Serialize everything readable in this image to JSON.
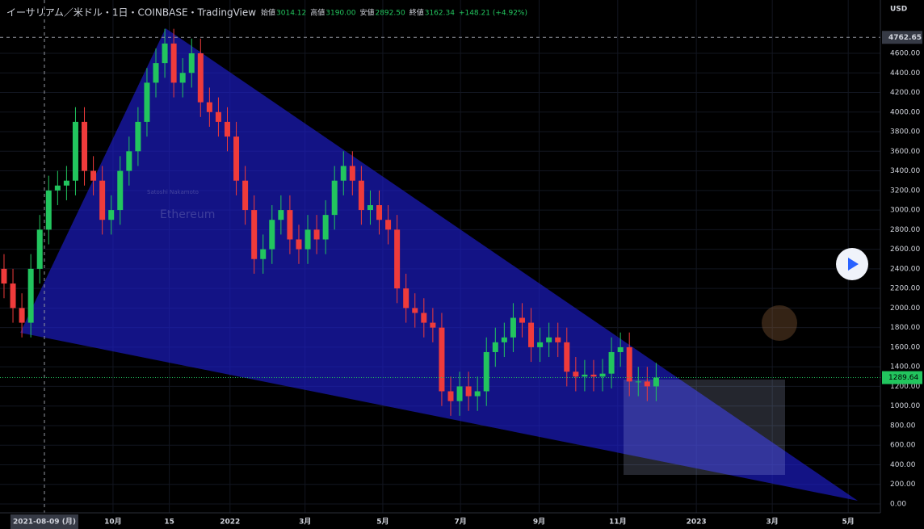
{
  "chart_data": {
    "type": "candlestick",
    "title": "イーサリアム／米ドル・1日・COINBASE・TradingView",
    "ohlc_legend": [
      {
        "label": "始値",
        "value": "3014.12"
      },
      {
        "label": "高値",
        "value": "3190.00"
      },
      {
        "label": "安値",
        "value": "2892.50"
      },
      {
        "label": "終値",
        "value": "3162.34"
      }
    ],
    "change": "+148.21 (+4.92%)",
    "currency": "USD",
    "watermark": "Ethereum",
    "watermark_sub": "Satoshi Nakamoto",
    "up_color": "#22c55e",
    "down_color": "#ef3b3b",
    "open": [
      2400,
      2250,
      2000,
      1850,
      2400,
      2800,
      3200,
      3250,
      3300,
      3900,
      3400,
      3300,
      2900,
      3000,
      3400,
      3600,
      3900,
      4300,
      4500,
      4700,
      4300,
      4400,
      4600,
      4100,
      4000,
      3900,
      3750,
      3300,
      3000,
      2500,
      2600,
      2900,
      3000,
      2700,
      2600,
      2800,
      2700,
      2950,
      3300,
      3450,
      3300,
      3000,
      3050,
      2900,
      2800,
      2200,
      2000,
      1950,
      1850,
      1800,
      1150,
      1050,
      1200,
      1100,
      1150,
      1550,
      1650,
      1700,
      1900,
      1850,
      1600,
      1650,
      1700,
      1650,
      1350,
      1300,
      1320,
      1300,
      1330,
      1550,
      1600,
      1250,
      1250,
      1200
    ],
    "high": [
      2550,
      2400,
      2150,
      2550,
      2950,
      3350,
      3400,
      3450,
      4050,
      4050,
      3550,
      3450,
      3150,
      3550,
      3750,
      4050,
      4450,
      4650,
      4850,
      4850,
      4550,
      4750,
      4750,
      4250,
      4150,
      4050,
      3900,
      3450,
      3150,
      2750,
      3050,
      3150,
      3150,
      2850,
      2950,
      2950,
      3100,
      3450,
      3600,
      3600,
      3450,
      3200,
      3200,
      3050,
      2950,
      2350,
      2150,
      2100,
      2000,
      1950,
      1300,
      1350,
      1350,
      1300,
      1700,
      1800,
      1850,
      2050,
      2050,
      2000,
      1800,
      1850,
      1850,
      1800,
      1500,
      1470,
      1470,
      1480,
      1700,
      1750,
      1750,
      1400,
      1400,
      1440
    ],
    "low": [
      2100,
      1850,
      1700,
      1700,
      2250,
      2650,
      3050,
      3100,
      3150,
      3250,
      3150,
      2750,
      2750,
      2850,
      3250,
      3450,
      3750,
      4150,
      4350,
      4150,
      4150,
      4250,
      3950,
      3850,
      3750,
      3600,
      3150,
      2850,
      2350,
      2350,
      2450,
      2750,
      2550,
      2450,
      2450,
      2550,
      2550,
      2800,
      3150,
      3150,
      2850,
      2850,
      2750,
      2650,
      2050,
      1850,
      1800,
      1700,
      1650,
      1000,
      900,
      900,
      950,
      950,
      1000,
      1400,
      1500,
      1550,
      1700,
      1450,
      1450,
      1500,
      1500,
      1200,
      1150,
      1150,
      1150,
      1150,
      1180,
      1400,
      1100,
      1100,
      1050,
      1050
    ],
    "close": [
      2250,
      2000,
      1850,
      2400,
      2800,
      3200,
      3250,
      3300,
      3900,
      3400,
      3300,
      2900,
      3000,
      3400,
      3600,
      3900,
      4300,
      4500,
      4700,
      4300,
      4400,
      4600,
      4100,
      4000,
      3900,
      3750,
      3300,
      3000,
      2500,
      2600,
      2900,
      3000,
      2700,
      2600,
      2800,
      2700,
      2950,
      3300,
      3450,
      3300,
      3000,
      3050,
      2900,
      2800,
      2200,
      2000,
      1950,
      1850,
      1800,
      1150,
      1050,
      1200,
      1100,
      1150,
      1550,
      1650,
      1700,
      1900,
      1850,
      1600,
      1650,
      1700,
      1650,
      1350,
      1300,
      1320,
      1300,
      1330,
      1550,
      1600,
      1250,
      1250,
      1200,
      1290
    ],
    "xlim": [
      -0.45,
      98.1
    ],
    "xticks": [
      {
        "value": 12.2,
        "label": "10月"
      },
      {
        "value": 18.5,
        "label": "15"
      },
      {
        "value": 25.3,
        "label": "2022"
      },
      {
        "value": 33.7,
        "label": "3月"
      },
      {
        "value": 42.4,
        "label": "5月"
      },
      {
        "value": 51.1,
        "label": "7月"
      },
      {
        "value": 59.9,
        "label": "9月"
      },
      {
        "value": 68.7,
        "label": "11月"
      },
      {
        "value": 77.5,
        "label": "2023"
      },
      {
        "value": 86.0,
        "label": "3月"
      },
      {
        "value": 94.5,
        "label": "5月"
      }
    ],
    "crosshair_x": {
      "value": 4.52,
      "label": "2021-08-09 (月)"
    },
    "crosshair_price": {
      "value": 4762.65,
      "label": "4762.65"
    },
    "last_price": {
      "value": 1289.64,
      "label": "1289.64"
    },
    "ylim": [
      -66,
      5144
    ],
    "yticks": [
      {
        "value": 0,
        "label": "0.00"
      },
      {
        "value": 200,
        "label": "200.00"
      },
      {
        "value": 400,
        "label": "400.00"
      },
      {
        "value": 600,
        "label": "600.00"
      },
      {
        "value": 800,
        "label": "800.00"
      },
      {
        "value": 1000,
        "label": "1000.00"
      },
      {
        "value": 1200,
        "label": "1200.00"
      },
      {
        "value": 1400,
        "label": "1400.00"
      },
      {
        "value": 1600,
        "label": "1600.00"
      },
      {
        "value": 1800,
        "label": "1800.00"
      },
      {
        "value": 2000,
        "label": "2000.00"
      },
      {
        "value": 2200,
        "label": "2200.00"
      },
      {
        "value": 2400,
        "label": "2400.00"
      },
      {
        "value": 2600,
        "label": "2600.00"
      },
      {
        "value": 2800,
        "label": "2800.00"
      },
      {
        "value": 3000,
        "label": "3000.00"
      },
      {
        "value": 3200,
        "label": "3200.00"
      },
      {
        "value": 3400,
        "label": "3400.00"
      },
      {
        "value": 3600,
        "label": "3600.00"
      },
      {
        "value": 3800,
        "label": "3800.00"
      },
      {
        "value": 4000,
        "label": "4000.00"
      },
      {
        "value": 4200,
        "label": "4200.00"
      },
      {
        "value": 4400,
        "label": "4400.00"
      },
      {
        "value": 4600,
        "label": "4600.00"
      }
    ],
    "grid": true
  }
}
